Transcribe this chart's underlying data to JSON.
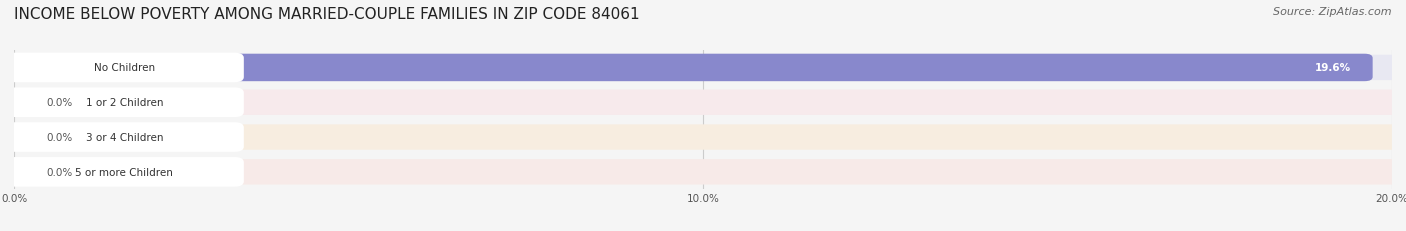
{
  "title": "INCOME BELOW POVERTY AMONG MARRIED-COUPLE FAMILIES IN ZIP CODE 84061",
  "source": "Source: ZipAtlas.com",
  "categories": [
    "No Children",
    "1 or 2 Children",
    "3 or 4 Children",
    "5 or more Children"
  ],
  "values": [
    19.6,
    0.0,
    0.0,
    0.0
  ],
  "bar_colors": [
    "#8888cc",
    "#f07888",
    "#f0c080",
    "#f09888"
  ],
  "row_bg_colors": [
    "#e8e8f2",
    "#f7eaec",
    "#f7ede0",
    "#f7eae8"
  ],
  "xlim": [
    0,
    20.0
  ],
  "xticks": [
    0.0,
    10.0,
    20.0
  ],
  "xticklabels": [
    "0.0%",
    "10.0%",
    "20.0%"
  ],
  "bar_height": 0.55,
  "background_color": "#f5f5f5",
  "title_fontsize": 11,
  "source_fontsize": 8
}
